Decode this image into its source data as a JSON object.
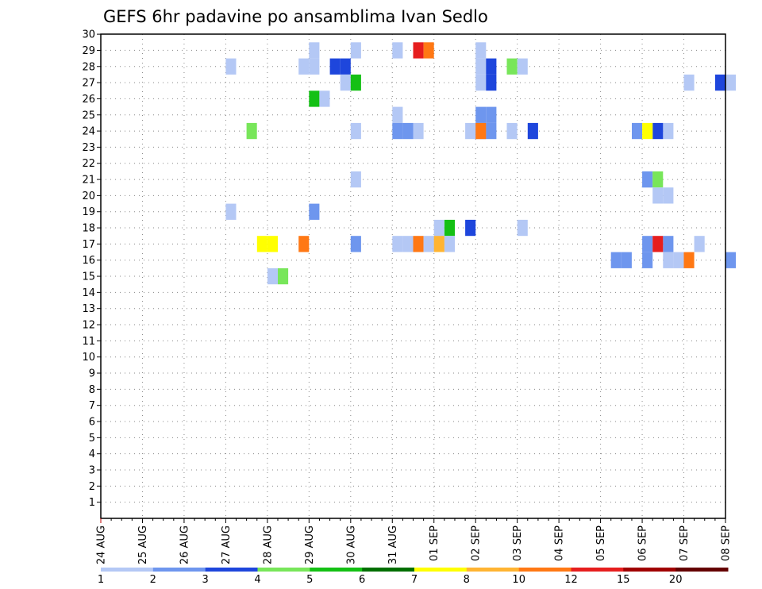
{
  "chart_data": {
    "type": "heatmap",
    "title": "GEFS 6hr padavine po ansamblima Ivan Sedlo",
    "xlabel": "",
    "ylabel": "",
    "x_start": "2024-08-24",
    "x_end": "2024-09-08",
    "x_step_hours": 6,
    "x_tick_labels": [
      "24 AUG",
      "25 AUG",
      "26 AUG",
      "27 AUG",
      "28 AUG",
      "29 AUG",
      "30 AUG",
      "31 AUG",
      "01 SEP",
      "02 SEP",
      "03 SEP",
      "04 SEP",
      "05 SEP",
      "06 SEP",
      "07 SEP",
      "08 SEP"
    ],
    "y_tick_labels": [
      "1",
      "2",
      "3",
      "4",
      "5",
      "6",
      "7",
      "8",
      "9",
      "10",
      "11",
      "12",
      "13",
      "14",
      "15",
      "16",
      "17",
      "18",
      "19",
      "20",
      "21",
      "22",
      "23",
      "24",
      "25",
      "26",
      "27",
      "28",
      "29",
      "30"
    ],
    "grid": true,
    "legend": {
      "position": "bottom",
      "levels": [
        "1",
        "2",
        "3",
        "4",
        "5",
        "6",
        "7",
        "8",
        "10",
        "12",
        "15",
        "20"
      ],
      "colors": [
        "#b4c8f5",
        "#6e96ee",
        "#1e46dc",
        "#78e65a",
        "#14c014",
        "#006e00",
        "#ffff00",
        "#ffb432",
        "#ff7814",
        "#e61e1e",
        "#a00000",
        "#640000"
      ]
    },
    "cells": [
      {
        "member": 29,
        "x": [
          "2024-08-29 00:00",
          "2024-08-30 00:00",
          "2024-08-31 00:00",
          "2024-09-02 00:00"
        ],
        "v": [
          1,
          1,
          1,
          1
        ]
      },
      {
        "member": 29,
        "x": [
          "2024-08-31 12:00"
        ],
        "v": [
          12
        ]
      },
      {
        "member": 29,
        "x": [
          "2024-08-31 18:00"
        ],
        "v": [
          10
        ]
      },
      {
        "member": 28,
        "x": [
          "2024-08-27 00:00",
          "2024-08-28 18:00",
          "2024-08-29 00:00",
          "2024-09-02 00:00",
          "2024-09-03 00:00"
        ],
        "v": [
          1,
          1,
          1,
          1,
          1
        ]
      },
      {
        "member": 28,
        "x": [
          "2024-08-29 12:00",
          "2024-08-29 18:00",
          "2024-09-02 06:00"
        ],
        "v": [
          3,
          3,
          3
        ]
      },
      {
        "member": 28,
        "x": [
          "2024-09-02 18:00"
        ],
        "v": [
          4
        ]
      },
      {
        "member": 27,
        "x": [
          "2024-08-29 18:00",
          "2024-09-02 00:00",
          "2024-09-07 00:00",
          "2024-09-08 00:00"
        ],
        "v": [
          1,
          1,
          1,
          1
        ]
      },
      {
        "member": 27,
        "x": [
          "2024-08-30 00:00"
        ],
        "v": [
          5
        ]
      },
      {
        "member": 27,
        "x": [
          "2024-09-02 06:00",
          "2024-09-07 18:00"
        ],
        "v": [
          3,
          3
        ]
      },
      {
        "member": 26,
        "x": [
          "2024-08-29 00:00"
        ],
        "v": [
          5
        ]
      },
      {
        "member": 26,
        "x": [
          "2024-08-29 06:00"
        ],
        "v": [
          1
        ]
      },
      {
        "member": 25,
        "x": [
          "2024-08-31 00:00"
        ],
        "v": [
          1
        ]
      },
      {
        "member": 25,
        "x": [
          "2024-09-02 00:00",
          "2024-09-02 06:00"
        ],
        "v": [
          2,
          2
        ]
      },
      {
        "member": 24,
        "x": [
          "2024-08-27 12:00"
        ],
        "v": [
          4
        ]
      },
      {
        "member": 24,
        "x": [
          "2024-08-30 00:00",
          "2024-08-31 12:00",
          "2024-09-01 18:00",
          "2024-09-02 18:00",
          "2024-09-06 12:00"
        ],
        "v": [
          1,
          1,
          1,
          1,
          1
        ]
      },
      {
        "member": 24,
        "x": [
          "2024-08-31 00:00",
          "2024-08-31 06:00",
          "2024-09-02 00:00",
          "2024-09-02 06:00",
          "2024-09-05 18:00"
        ],
        "v": [
          2,
          2,
          2,
          2,
          2
        ]
      },
      {
        "member": 24,
        "x": [
          "2024-09-02 00:00"
        ],
        "v": [
          10
        ]
      },
      {
        "member": 24,
        "x": [
          "2024-09-03 06:00",
          "2024-09-06 06:00"
        ],
        "v": [
          3,
          3
        ]
      },
      {
        "member": 24,
        "x": [
          "2024-09-06 00:00"
        ],
        "v": [
          7
        ]
      },
      {
        "member": 21,
        "x": [
          "2024-08-30 00:00",
          "2024-09-06 00:00"
        ],
        "v": [
          1,
          1
        ]
      },
      {
        "member": 21,
        "x": [
          "2024-09-06 00:00"
        ],
        "v": [
          2
        ]
      },
      {
        "member": 21,
        "x": [
          "2024-09-06 06:00"
        ],
        "v": [
          4
        ]
      },
      {
        "member": 20,
        "x": [
          "2024-09-06 06:00",
          "2024-09-06 12:00"
        ],
        "v": [
          1,
          1
        ]
      },
      {
        "member": 19,
        "x": [
          "2024-08-27 00:00"
        ],
        "v": [
          1
        ]
      },
      {
        "member": 19,
        "x": [
          "2024-08-29 00:00"
        ],
        "v": [
          2
        ]
      },
      {
        "member": 18,
        "x": [
          "2024-09-01 00:00"
        ],
        "v": [
          1
        ]
      },
      {
        "member": 18,
        "x": [
          "2024-09-01 06:00"
        ],
        "v": [
          5
        ]
      },
      {
        "member": 18,
        "x": [
          "2024-09-01 18:00"
        ],
        "v": [
          3
        ]
      },
      {
        "member": 18,
        "x": [
          "2024-09-03 00:00"
        ],
        "v": [
          1
        ]
      },
      {
        "member": 17,
        "x": [
          "2024-08-27 18:00",
          "2024-08-28 00:00"
        ],
        "v": [
          7,
          7
        ]
      },
      {
        "member": 17,
        "x": [
          "2024-08-28 18:00"
        ],
        "v": [
          10
        ]
      },
      {
        "member": 17,
        "x": [
          "2024-08-30 00:00"
        ],
        "v": [
          2
        ]
      },
      {
        "member": 17,
        "x": [
          "2024-08-31 00:00",
          "2024-08-31 06:00",
          "2024-09-01 00:00",
          "2024-09-01 06:00"
        ],
        "v": [
          1,
          1,
          1,
          1
        ]
      },
      {
        "member": 17,
        "x": [
          "2024-08-31 12:00"
        ],
        "v": [
          10
        ]
      },
      {
        "member": 17,
        "x": [
          "2024-08-31 18:00"
        ],
        "v": [
          1
        ]
      },
      {
        "member": 17,
        "x": [
          "2024-09-01 00:00"
        ],
        "v": [
          8
        ]
      },
      {
        "member": 17,
        "x": [
          "2024-09-06 00:00",
          "2024-09-06 12:00"
        ],
        "v": [
          2,
          2
        ]
      },
      {
        "member": 17,
        "x": [
          "2024-09-06 06:00"
        ],
        "v": [
          12
        ]
      },
      {
        "member": 17,
        "x": [
          "2024-09-07 06:00"
        ],
        "v": [
          1
        ]
      },
      {
        "member": 16,
        "x": [
          "2024-09-05 06:00",
          "2024-09-05 12:00",
          "2024-09-06 00:00",
          "2024-09-08 00:00"
        ],
        "v": [
          2,
          2,
          2,
          2
        ]
      },
      {
        "member": 16,
        "x": [
          "2024-09-06 12:00",
          "2024-09-06 18:00"
        ],
        "v": [
          1,
          1
        ]
      },
      {
        "member": 16,
        "x": [
          "2024-09-07 00:00"
        ],
        "v": [
          10
        ]
      },
      {
        "member": 15,
        "x": [
          "2024-08-28 00:00"
        ],
        "v": [
          1
        ]
      },
      {
        "member": 15,
        "x": [
          "2024-08-28 06:00"
        ],
        "v": [
          4
        ]
      }
    ]
  }
}
